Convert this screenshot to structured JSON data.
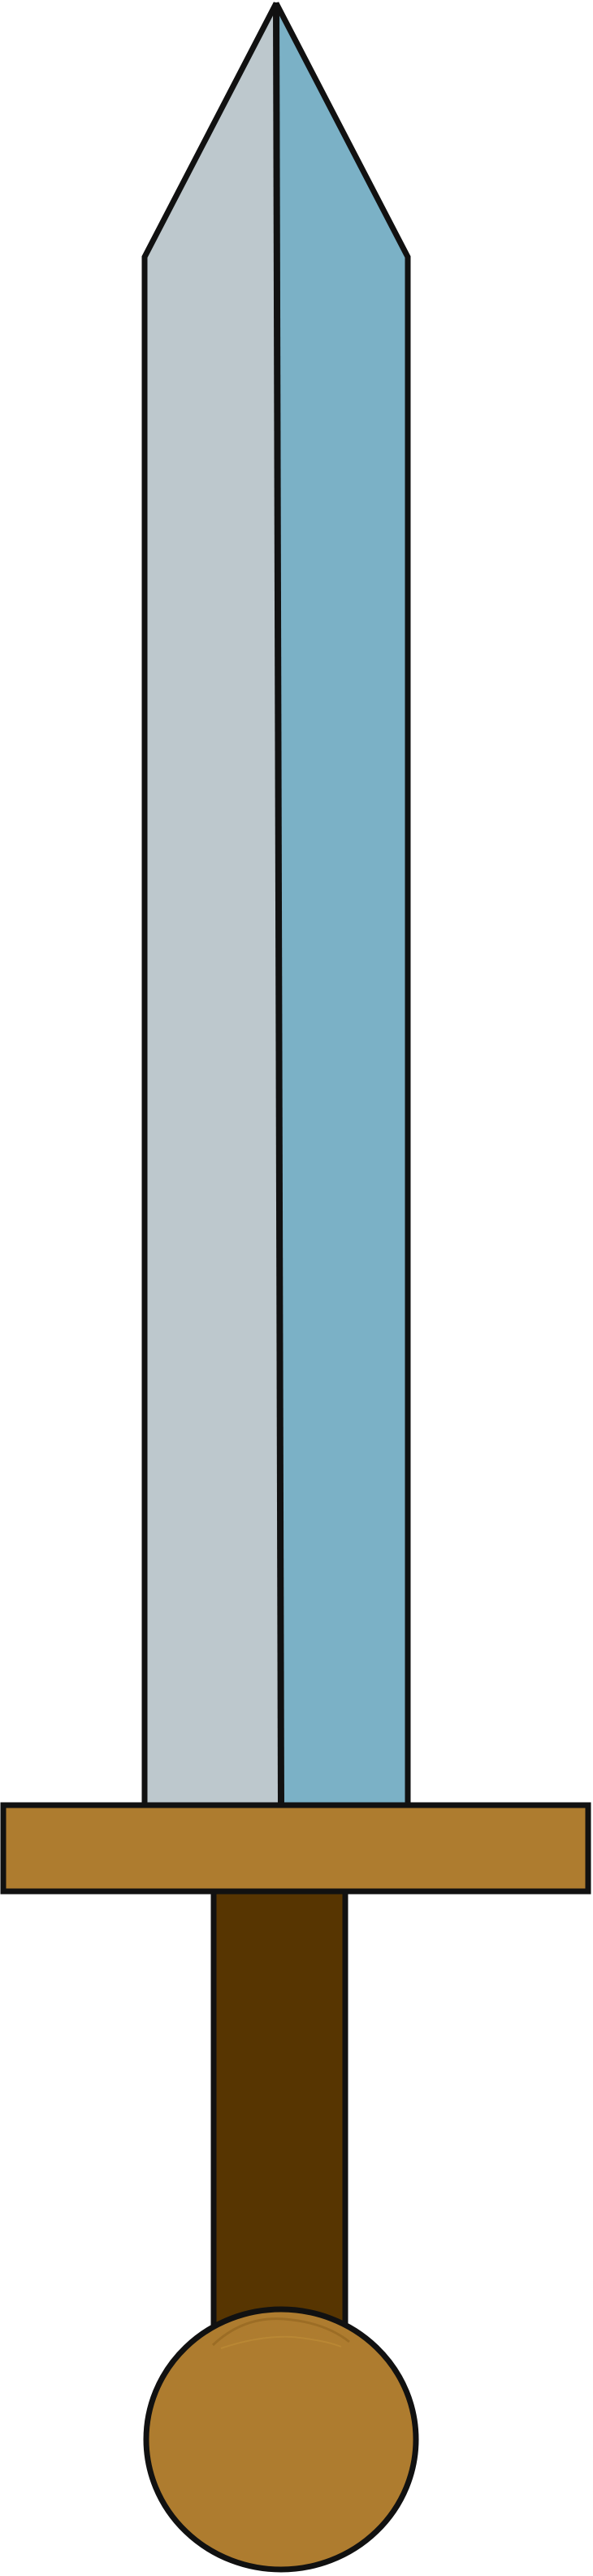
{
  "illustration": {
    "subject": "sword-icon",
    "colors": {
      "outline": "#111111",
      "blade_left": "#bdc8cd",
      "blade_right": "#7bb1c6",
      "crossguard": "#ae7c2f",
      "grip": "#573501",
      "pommel": "#ae7c2f",
      "background": "#ffffff"
    }
  }
}
